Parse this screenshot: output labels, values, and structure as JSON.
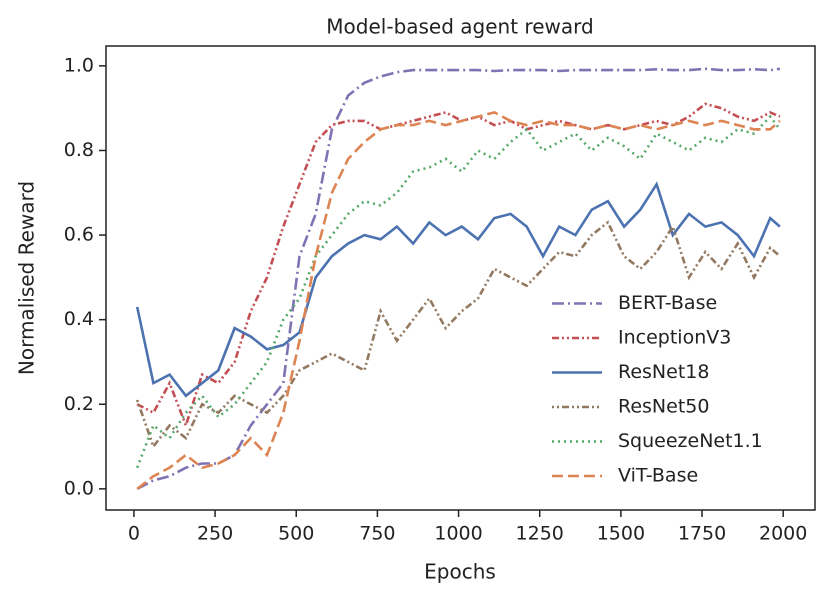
{
  "chart_data": {
    "type": "line",
    "title": "Model-based agent reward",
    "xlabel": "Epochs",
    "ylabel": "Normalised Reward",
    "x": [
      10,
      60,
      110,
      160,
      210,
      260,
      310,
      360,
      410,
      460,
      510,
      560,
      610,
      660,
      710,
      760,
      810,
      860,
      910,
      960,
      1010,
      1060,
      1110,
      1160,
      1210,
      1260,
      1310,
      1360,
      1410,
      1460,
      1510,
      1560,
      1610,
      1660,
      1710,
      1760,
      1810,
      1860,
      1910,
      1960,
      1990
    ],
    "series": [
      {
        "name": "BERT-Base",
        "color": "#8172b3",
        "dash": "dashdot",
        "values": [
          0.0,
          0.02,
          0.03,
          0.05,
          0.06,
          0.06,
          0.08,
          0.15,
          0.2,
          0.25,
          0.55,
          0.65,
          0.85,
          0.93,
          0.96,
          0.975,
          0.985,
          0.99,
          0.99,
          0.99,
          0.99,
          0.99,
          0.988,
          0.99,
          0.99,
          0.99,
          0.988,
          0.99,
          0.99,
          0.99,
          0.99,
          0.99,
          0.992,
          0.99,
          0.99,
          0.993,
          0.99,
          0.99,
          0.992,
          0.99,
          0.993
        ]
      },
      {
        "name": "InceptionV3",
        "color": "#c44e52",
        "dash": "dashdotdot",
        "values": [
          0.2,
          0.18,
          0.25,
          0.15,
          0.27,
          0.25,
          0.3,
          0.42,
          0.5,
          0.62,
          0.72,
          0.82,
          0.86,
          0.87,
          0.87,
          0.85,
          0.86,
          0.87,
          0.88,
          0.89,
          0.87,
          0.88,
          0.86,
          0.87,
          0.85,
          0.86,
          0.87,
          0.86,
          0.85,
          0.86,
          0.85,
          0.86,
          0.87,
          0.86,
          0.88,
          0.91,
          0.9,
          0.88,
          0.87,
          0.89,
          0.88
        ]
      },
      {
        "name": "ResNet18",
        "color": "#4c72b0",
        "dash": "solid",
        "values": [
          0.43,
          0.25,
          0.27,
          0.22,
          0.25,
          0.28,
          0.38,
          0.36,
          0.33,
          0.34,
          0.37,
          0.5,
          0.55,
          0.58,
          0.6,
          0.59,
          0.62,
          0.58,
          0.63,
          0.6,
          0.62,
          0.59,
          0.64,
          0.65,
          0.62,
          0.55,
          0.62,
          0.6,
          0.66,
          0.68,
          0.62,
          0.66,
          0.72,
          0.6,
          0.65,
          0.62,
          0.63,
          0.6,
          0.55,
          0.64,
          0.62
        ]
      },
      {
        "name": "ResNet50",
        "color": "#937860",
        "dash": "dotted-dash",
        "values": [
          0.21,
          0.1,
          0.15,
          0.12,
          0.2,
          0.18,
          0.22,
          0.2,
          0.18,
          0.22,
          0.28,
          0.3,
          0.32,
          0.3,
          0.28,
          0.42,
          0.35,
          0.4,
          0.45,
          0.38,
          0.42,
          0.45,
          0.52,
          0.5,
          0.48,
          0.52,
          0.56,
          0.55,
          0.6,
          0.63,
          0.55,
          0.52,
          0.56,
          0.62,
          0.5,
          0.56,
          0.52,
          0.58,
          0.5,
          0.57,
          0.55
        ]
      },
      {
        "name": "SqueezeNet1.1",
        "color": "#55a868",
        "dash": "dotted",
        "values": [
          0.05,
          0.15,
          0.12,
          0.18,
          0.22,
          0.17,
          0.2,
          0.25,
          0.3,
          0.4,
          0.45,
          0.55,
          0.6,
          0.65,
          0.68,
          0.67,
          0.7,
          0.75,
          0.76,
          0.78,
          0.75,
          0.8,
          0.78,
          0.82,
          0.85,
          0.8,
          0.82,
          0.84,
          0.8,
          0.83,
          0.81,
          0.78,
          0.84,
          0.82,
          0.8,
          0.83,
          0.82,
          0.85,
          0.84,
          0.88,
          0.85
        ]
      },
      {
        "name": "ViT-Base",
        "color": "#dd8452",
        "dash": "dashed",
        "values": [
          0.0,
          0.03,
          0.05,
          0.08,
          0.05,
          0.06,
          0.08,
          0.12,
          0.08,
          0.18,
          0.35,
          0.55,
          0.7,
          0.78,
          0.82,
          0.85,
          0.86,
          0.86,
          0.87,
          0.86,
          0.87,
          0.88,
          0.89,
          0.87,
          0.86,
          0.87,
          0.86,
          0.86,
          0.85,
          0.86,
          0.85,
          0.86,
          0.85,
          0.86,
          0.87,
          0.86,
          0.87,
          0.86,
          0.85,
          0.85,
          0.87
        ]
      }
    ],
    "xlim": [
      -86,
      2098
    ],
    "ylim": [
      -0.05,
      1.047
    ],
    "xticks": [
      0,
      250,
      500,
      750,
      1000,
      1250,
      1500,
      1750,
      2000
    ],
    "yticks": [
      {
        "value": 0,
        "label": "0.0"
      },
      0.2,
      0.4,
      0.6,
      0.8,
      {
        "value": 1,
        "label": "1.0"
      }
    ],
    "grid": false,
    "legend": "lower right"
  }
}
